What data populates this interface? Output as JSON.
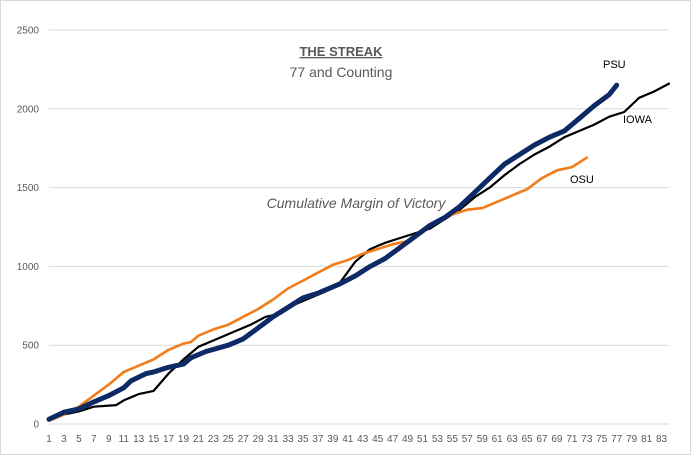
{
  "chart_data": {
    "type": "line",
    "title": "THE STREAK",
    "subtitle": "77 and Counting",
    "annotation": "Cumulative Margin of Victory",
    "xlabel": "",
    "ylabel": "",
    "xlim": [
      1,
      84
    ],
    "ylim": [
      0,
      2500
    ],
    "y_ticks": [
      0,
      500,
      1000,
      1500,
      2000,
      2500
    ],
    "x_ticks": [
      1,
      3,
      5,
      7,
      9,
      11,
      13,
      15,
      17,
      19,
      21,
      23,
      25,
      27,
      29,
      31,
      33,
      35,
      37,
      39,
      41,
      43,
      45,
      47,
      49,
      51,
      53,
      55,
      57,
      59,
      61,
      63,
      65,
      67,
      69,
      71,
      73,
      75,
      77,
      79,
      81,
      83
    ],
    "grid": "horizontal",
    "series": [
      {
        "name": "PSU",
        "color": "#0d2a66",
        "points": [
          [
            1,
            30
          ],
          [
            3,
            75
          ],
          [
            5,
            95
          ],
          [
            7,
            140
          ],
          [
            9,
            180
          ],
          [
            11,
            230
          ],
          [
            12,
            275
          ],
          [
            14,
            320
          ],
          [
            15,
            330
          ],
          [
            17,
            360
          ],
          [
            19,
            380
          ],
          [
            20,
            420
          ],
          [
            22,
            460
          ],
          [
            25,
            500
          ],
          [
            27,
            540
          ],
          [
            29,
            610
          ],
          [
            31,
            680
          ],
          [
            33,
            740
          ],
          [
            35,
            800
          ],
          [
            37,
            830
          ],
          [
            40,
            890
          ],
          [
            42,
            940
          ],
          [
            44,
            1000
          ],
          [
            46,
            1050
          ],
          [
            48,
            1120
          ],
          [
            50,
            1190
          ],
          [
            52,
            1260
          ],
          [
            54,
            1310
          ],
          [
            56,
            1380
          ],
          [
            58,
            1470
          ],
          [
            60,
            1560
          ],
          [
            62,
            1650
          ],
          [
            64,
            1710
          ],
          [
            66,
            1770
          ],
          [
            68,
            1820
          ],
          [
            70,
            1860
          ],
          [
            72,
            1940
          ],
          [
            74,
            2020
          ],
          [
            76,
            2090
          ],
          [
            77,
            2150
          ]
        ]
      },
      {
        "name": "IOWA",
        "color": "#000000",
        "points": [
          [
            1,
            30
          ],
          [
            3,
            60
          ],
          [
            5,
            80
          ],
          [
            7,
            110
          ],
          [
            10,
            120
          ],
          [
            11,
            150
          ],
          [
            13,
            190
          ],
          [
            15,
            210
          ],
          [
            17,
            320
          ],
          [
            19,
            410
          ],
          [
            21,
            490
          ],
          [
            23,
            530
          ],
          [
            26,
            590
          ],
          [
            28,
            630
          ],
          [
            30,
            680
          ],
          [
            32,
            700
          ],
          [
            34,
            760
          ],
          [
            36,
            800
          ],
          [
            38,
            840
          ],
          [
            40,
            900
          ],
          [
            42,
            1030
          ],
          [
            44,
            1110
          ],
          [
            46,
            1150
          ],
          [
            48,
            1180
          ],
          [
            50,
            1210
          ],
          [
            52,
            1240
          ],
          [
            54,
            1300
          ],
          [
            56,
            1360
          ],
          [
            58,
            1440
          ],
          [
            60,
            1500
          ],
          [
            62,
            1580
          ],
          [
            64,
            1650
          ],
          [
            66,
            1710
          ],
          [
            68,
            1760
          ],
          [
            70,
            1820
          ],
          [
            72,
            1860
          ],
          [
            74,
            1900
          ],
          [
            76,
            1950
          ],
          [
            78,
            1980
          ],
          [
            80,
            2070
          ],
          [
            82,
            2110
          ],
          [
            84,
            2160
          ]
        ]
      },
      {
        "name": "OSU",
        "color": "#f07c1a",
        "points": [
          [
            1,
            20
          ],
          [
            3,
            60
          ],
          [
            5,
            110
          ],
          [
            7,
            180
          ],
          [
            9,
            250
          ],
          [
            11,
            330
          ],
          [
            13,
            370
          ],
          [
            15,
            410
          ],
          [
            17,
            470
          ],
          [
            19,
            510
          ],
          [
            20,
            520
          ],
          [
            21,
            560
          ],
          [
            23,
            600
          ],
          [
            25,
            630
          ],
          [
            27,
            680
          ],
          [
            29,
            730
          ],
          [
            31,
            790
          ],
          [
            33,
            860
          ],
          [
            35,
            910
          ],
          [
            37,
            960
          ],
          [
            39,
            1010
          ],
          [
            41,
            1040
          ],
          [
            43,
            1080
          ],
          [
            45,
            1110
          ],
          [
            47,
            1140
          ],
          [
            49,
            1160
          ],
          [
            51,
            1220
          ],
          [
            53,
            1290
          ],
          [
            55,
            1330
          ],
          [
            57,
            1360
          ],
          [
            59,
            1370
          ],
          [
            61,
            1410
          ],
          [
            63,
            1450
          ],
          [
            65,
            1490
          ],
          [
            67,
            1560
          ],
          [
            69,
            1610
          ],
          [
            71,
            1630
          ],
          [
            73,
            1690
          ]
        ]
      }
    ]
  }
}
